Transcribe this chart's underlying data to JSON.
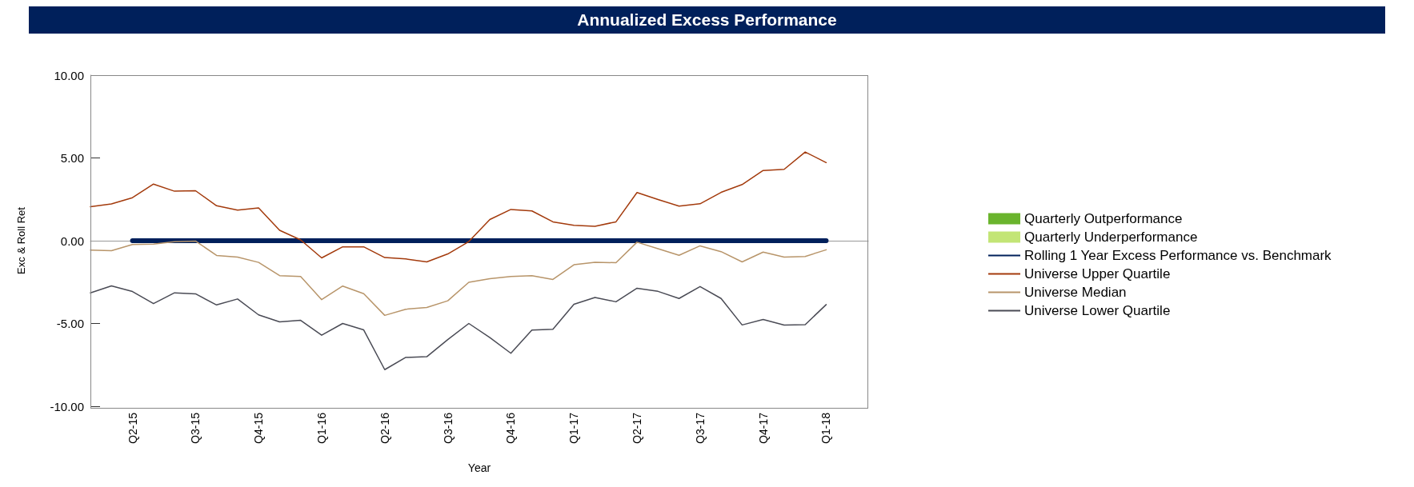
{
  "chart_data": {
    "type": "line",
    "title": "Annualized Excess Performance",
    "xlabel": "Year",
    "ylabel": "Exc & Roll Ret",
    "categories": [
      null,
      null,
      "Q2-15",
      null,
      null,
      "Q3-15",
      null,
      null,
      "Q4-15",
      null,
      null,
      "Q1-16",
      null,
      null,
      "Q2-16",
      null,
      null,
      "Q3-16",
      null,
      null,
      "Q4-16",
      null,
      null,
      "Q1-17",
      null,
      null,
      "Q2-17",
      null,
      null,
      "Q3-17",
      null,
      null,
      "Q4-17",
      null,
      null,
      "Q1-18",
      null,
      null
    ],
    "series": [
      {
        "name": "Quarterly Outperformance",
        "type": "bar",
        "color": "#6ab42d",
        "values": [
          null,
          null,
          0,
          0,
          0,
          0,
          0,
          0,
          0,
          0,
          0,
          0,
          0,
          0,
          0,
          0,
          0,
          0,
          0,
          0,
          0,
          0,
          0,
          0,
          0,
          0,
          0,
          0,
          0,
          0,
          0,
          0,
          0,
          0,
          0,
          0,
          null,
          null
        ]
      },
      {
        "name": "Quarterly Underperformance",
        "type": "bar",
        "color": "#c3e576",
        "values": [
          null,
          null,
          0,
          0,
          0,
          0,
          0,
          0,
          0,
          0,
          0,
          0,
          0,
          0,
          0,
          0,
          0,
          0,
          0,
          0,
          0,
          0,
          0,
          0,
          0,
          0,
          0,
          0,
          0,
          0,
          0,
          0,
          0,
          0,
          0,
          0,
          null,
          null
        ]
      },
      {
        "name": "Rolling 1 Year Excess Performance vs. Benchmark",
        "color": "#00205b",
        "values": [
          null,
          null,
          0,
          0,
          0,
          0,
          0,
          0,
          0,
          0,
          0,
          0,
          0,
          0,
          0,
          0,
          0,
          0,
          0,
          0,
          0,
          0,
          0,
          0,
          0,
          0,
          0,
          0,
          0,
          0,
          0,
          0,
          0,
          0,
          0,
          0,
          null,
          null
        ]
      },
      {
        "name": "Universe Upper Quartile",
        "color": "#a33a0c",
        "values": [
          2.05,
          2.22,
          2.6,
          3.42,
          2.99,
          3.02,
          2.11,
          1.85,
          1.98,
          0.63,
          0.05,
          -1.04,
          -0.37,
          -0.37,
          -1.02,
          -1.1,
          -1.28,
          -0.8,
          -0.05,
          1.28,
          1.89,
          1.8,
          1.14,
          0.93,
          0.87,
          1.14,
          2.91,
          2.49,
          2.09,
          2.23,
          2.92,
          3.39,
          4.24,
          4.31,
          5.36,
          4.72,
          null,
          null
        ]
      },
      {
        "name": "Universe Median",
        "color": "#b8956a",
        "values": [
          -0.57,
          -0.6,
          -0.23,
          -0.21,
          -0.06,
          -0.02,
          -0.89,
          -0.99,
          -1.31,
          -2.11,
          -2.16,
          -3.56,
          -2.74,
          -3.2,
          -4.51,
          -4.14,
          -4.03,
          -3.63,
          -2.51,
          -2.3,
          -2.16,
          -2.11,
          -2.34,
          -1.45,
          -1.3,
          -1.33,
          -0.09,
          -0.48,
          -0.88,
          -0.31,
          -0.66,
          -1.28,
          -0.69,
          -0.99,
          -0.95,
          -0.55,
          null,
          null
        ]
      },
      {
        "name": "Universe Lower Quartile",
        "color": "#4a4b55",
        "values": [
          -3.15,
          -2.73,
          -3.07,
          -3.8,
          -3.15,
          -3.21,
          -3.88,
          -3.52,
          -4.48,
          -4.9,
          -4.81,
          -5.71,
          -5.0,
          -5.39,
          -7.79,
          -7.05,
          -7.01,
          -5.97,
          -5.0,
          -5.85,
          -6.8,
          -5.4,
          -5.35,
          -3.84,
          -3.43,
          -3.69,
          -2.87,
          -3.06,
          -3.49,
          -2.77,
          -3.49,
          -5.09,
          -4.76,
          -5.1,
          -5.07,
          -3.86,
          null,
          null
        ]
      }
    ],
    "ylim": [
      -10,
      10
    ],
    "yticks": [
      {
        "value": -10,
        "label": "-10.00"
      },
      {
        "value": -5,
        "label": "-5.00"
      },
      {
        "value": 0,
        "label": "0.00"
      },
      {
        "value": 5,
        "label": "5.00"
      },
      {
        "value": 10,
        "label": "10.00"
      }
    ],
    "ref_lines": [
      {
        "axis": "y",
        "value": 0,
        "color": "#999999"
      }
    ],
    "grid": false,
    "legend": "right",
    "marker": "none",
    "line_style": "solid"
  }
}
